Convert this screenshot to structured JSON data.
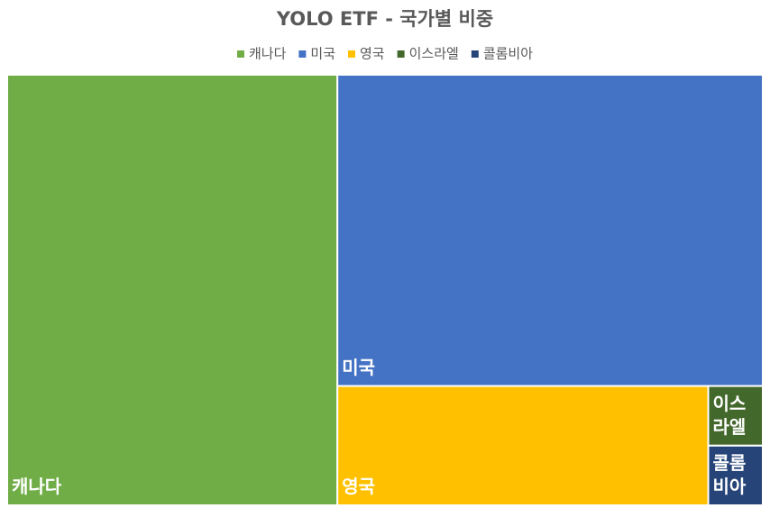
{
  "chart_data": {
    "type": "treemap",
    "title": "YOLO ETF - 국가별 비중",
    "categories": [
      "캐나다",
      "미국",
      "영국",
      "이스라엘",
      "콜롬비아"
    ],
    "values": [
      43.7,
      40.7,
      13.6,
      1.0,
      1.0
    ],
    "colors": [
      "#70ad47",
      "#4472c4",
      "#ffc000",
      "#43682b",
      "#264478"
    ]
  }
}
